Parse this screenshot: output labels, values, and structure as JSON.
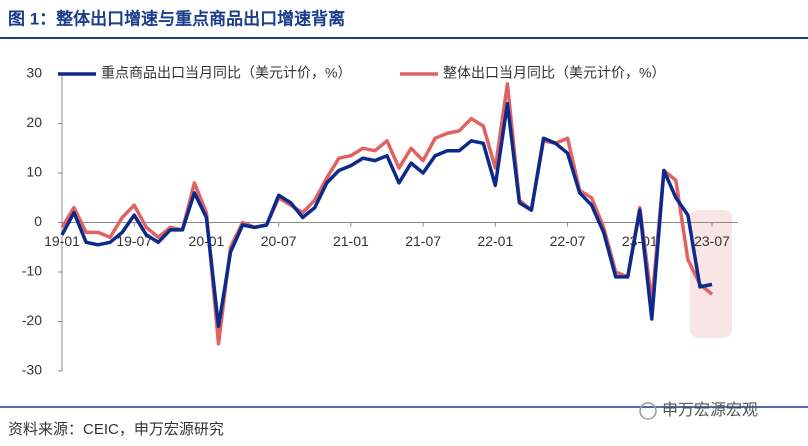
{
  "chart_data": {
    "type": "line",
    "title": "图 1：整体出口增速与重点商品出口增速背离",
    "categories": [
      "19-01",
      null,
      null,
      null,
      null,
      null,
      "19-07",
      null,
      null,
      null,
      null,
      null,
      "20-01",
      null,
      null,
      null,
      null,
      null,
      "20-07",
      null,
      null,
      null,
      null,
      null,
      "21-01",
      null,
      null,
      null,
      null,
      null,
      "21-07",
      null,
      null,
      null,
      null,
      null,
      "22-01",
      null,
      null,
      null,
      null,
      null,
      "22-07",
      null,
      null,
      null,
      null,
      null,
      "23-01",
      null,
      null,
      null,
      null,
      null,
      "23-07"
    ],
    "series": [
      {
        "name": "重点商品出口当月同比（美元计价，%）",
        "color": "#0b2a8c",
        "values": [
          -2.5,
          2,
          -4,
          -4.5,
          -4,
          -2,
          1.5,
          -2.5,
          -4,
          -1.5,
          -1.5,
          6,
          1,
          -21,
          -6,
          -0.5,
          -1,
          -0.5,
          5.5,
          4,
          1,
          3,
          8,
          10.5,
          11.5,
          13,
          12.5,
          13.5,
          8,
          12,
          10,
          13.5,
          14.5,
          14.5,
          16.5,
          16,
          7.5,
          24,
          4,
          2.5,
          17,
          16,
          14,
          6,
          3.5,
          -2,
          -11,
          -11,
          2.5,
          -19.5,
          10.5,
          5,
          1.5,
          -13,
          -12.5
        ]
      },
      {
        "name": "整体出口当月同比（美元计价，%）",
        "color": "#e06262",
        "values": [
          -1,
          3,
          -2,
          -2,
          -3,
          1,
          3.5,
          -1,
          -3,
          -1,
          -1.5,
          8,
          2,
          -24.5,
          -5,
          0,
          -1,
          -0.5,
          5,
          3.5,
          2,
          4.5,
          9,
          13,
          13.5,
          15,
          14.5,
          16.5,
          11,
          15,
          12.5,
          17,
          18,
          18.5,
          21,
          19.5,
          11,
          28,
          4.5,
          2.5,
          16.5,
          16,
          17,
          6.5,
          5,
          -1,
          -10,
          -11,
          3,
          -16,
          10.5,
          8.5,
          -7.5,
          -12.5,
          -14.5
        ]
      }
    ],
    "ylim": [
      -30,
      30
    ],
    "yticks": [
      -30,
      -20,
      -10,
      0,
      10,
      20,
      30
    ],
    "legend": "top",
    "source": "资料来源：CEIC，申万宏源研究",
    "watermark": "申万宏源宏观"
  }
}
